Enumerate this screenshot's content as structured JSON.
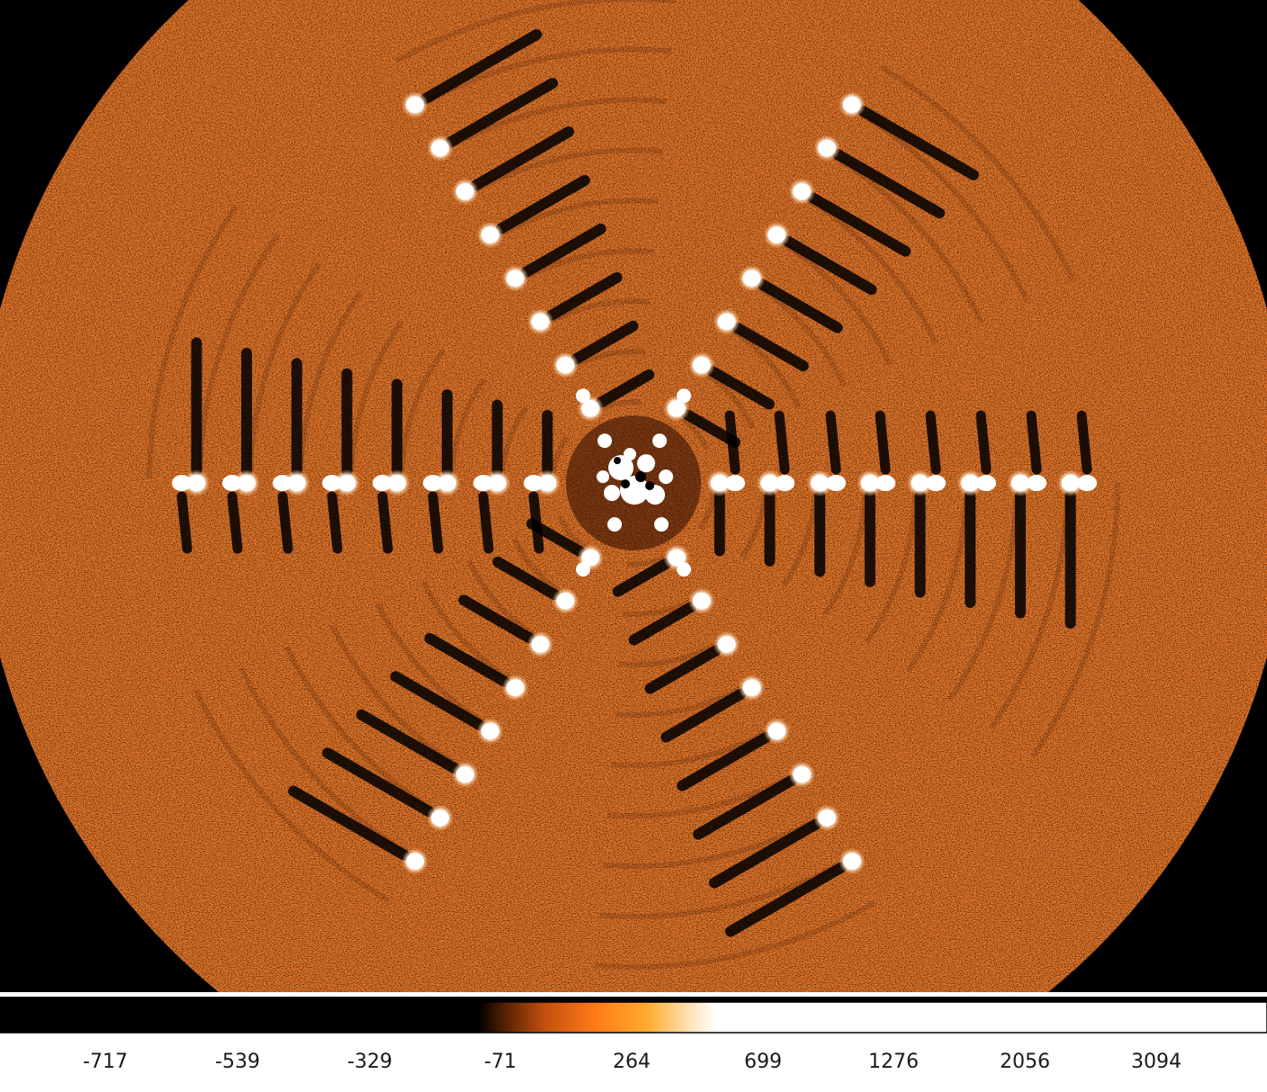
{
  "image": {
    "description_colors": {
      "background": "#000000",
      "field": "#e8782a",
      "spot": "#ffffff"
    },
    "icon": "coronagraph-speckle-image"
  },
  "colorbar": {
    "ticks": [
      "-717",
      "-539",
      "-329",
      "-71",
      "264",
      "699",
      "1276",
      "2056",
      "3094"
    ],
    "tick_values": [
      -717,
      -539,
      -329,
      -71,
      264,
      699,
      1276,
      2056,
      3094
    ],
    "gradient": [
      "#000000",
      "#000000",
      "#3a1400",
      "#b84a0c",
      "#ff7f1a",
      "#ffb340",
      "#ffffff",
      "#ffffff"
    ]
  }
}
